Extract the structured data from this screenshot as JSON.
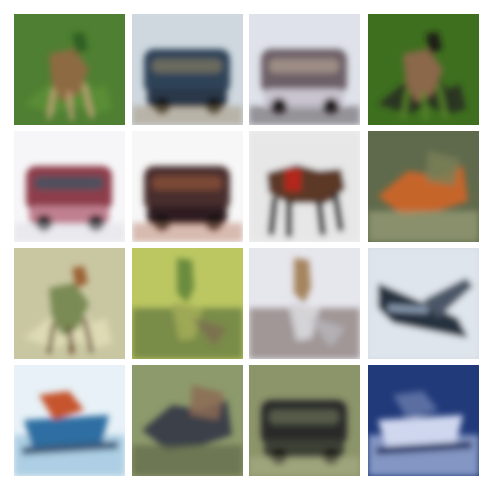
{
  "grid": {
    "rows": 4,
    "cols": 4,
    "tiles": [
      {
        "subject": "deer",
        "bg": "#4f7f32",
        "colors": [
          "#2f5f20",
          "#8e6a43",
          "#c5a57b",
          "#5a8d36"
        ]
      },
      {
        "subject": "vehicle",
        "bg": "#cfd8df",
        "colors": [
          "#2f4358",
          "#6b6a5f",
          "#a28f6f",
          "#2a3848"
        ]
      },
      {
        "subject": "vehicle",
        "bg": "#dfe2ea",
        "colors": [
          "#6d6067",
          "#9e8d85",
          "#4a3f45",
          "#c9c4cf"
        ]
      },
      {
        "subject": "deer",
        "bg": "#3e6f1f",
        "colors": [
          "#1b1f16",
          "#8a6849",
          "#5b8a2a",
          "#2a3520"
        ]
      },
      {
        "subject": "vehicle",
        "bg": "#f6f6f8",
        "colors": [
          "#8e3c4c",
          "#4f4f5d",
          "#dcdce5",
          "#c08090"
        ]
      },
      {
        "subject": "vehicle",
        "bg": "#f7f7f7",
        "colors": [
          "#4a2f2d",
          "#7b4a35",
          "#b98069",
          "#2d1f22"
        ]
      },
      {
        "subject": "horse",
        "bg": "#f0f0f0",
        "colors": [
          "#2a2a2a",
          "#b5261f",
          "#5b3928",
          "#d9d9d9"
        ]
      },
      {
        "subject": "animal",
        "bg": "#5f6a4c",
        "colors": [
          "#c6652c",
          "#7a7f56",
          "#4f5c40",
          "#9aa079"
        ]
      },
      {
        "subject": "deer",
        "bg": "#c9c7a2",
        "colors": [
          "#9b6136",
          "#7a8b55",
          "#5f3b22",
          "#dedbb4"
        ]
      },
      {
        "subject": "bird",
        "bg": "#bcc762",
        "colors": [
          "#6a8b3c",
          "#9ea957",
          "#556b3a",
          "#7c6b53"
        ]
      },
      {
        "subject": "bird",
        "bg": "#e6e6ed",
        "colors": [
          "#a5845e",
          "#d4d3d6",
          "#7b6b68",
          "#b8b6bd"
        ]
      },
      {
        "subject": "airplane",
        "bg": "#d4dce4",
        "colors": [
          "#27313f",
          "#8fa1b7",
          "#e6ebf1",
          "#4b5668"
        ]
      },
      {
        "subject": "ship",
        "bg": "#e7f1f7",
        "colors": [
          "#2d6ea2",
          "#c6542d",
          "#1f3b5b",
          "#9fc6de"
        ]
      },
      {
        "subject": "animal",
        "bg": "#8d9a6b",
        "colors": [
          "#3b3f4a",
          "#8c6b53",
          "#c6c5b6",
          "#5f6a4a"
        ]
      },
      {
        "subject": "truck",
        "bg": "#8c946a",
        "colors": [
          "#2a2c2b",
          "#565b4a",
          "#b0b48c",
          "#3c4135"
        ]
      },
      {
        "subject": "ship",
        "bg": "#213a7a",
        "colors": [
          "#cfd7ef",
          "#5a6ea2",
          "#0f1e4e",
          "#9cadd6"
        ]
      }
    ]
  }
}
